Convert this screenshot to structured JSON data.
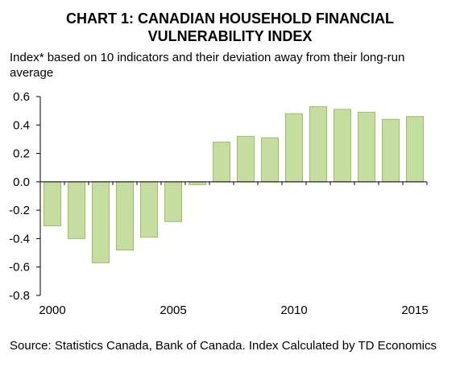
{
  "title_line1": "CHART 1: CANADIAN HOUSEHOLD FINANCIAL",
  "title_line2": "VULNERABILITY INDEX",
  "subtitle": "Index* based on 10 indicators and their deviation away from their long-run average",
  "source": "Source: Statistics Canada, Bank of Canada. Index Calculated by TD Economics",
  "colors": {
    "bar_fill": "#c5dd9e",
    "bar_stroke": "#9cbf66"
  },
  "chart_data": {
    "type": "bar",
    "title": "CHART 1: CANADIAN HOUSEHOLD FINANCIAL VULNERABILITY INDEX",
    "ylabel": "Index*",
    "categories": [
      2000,
      2001,
      2002,
      2003,
      2004,
      2005,
      2006,
      2007,
      2008,
      2009,
      2010,
      2011,
      2012,
      2013,
      2014,
      2015
    ],
    "values": [
      -0.31,
      -0.4,
      -0.57,
      -0.48,
      -0.39,
      -0.28,
      -0.02,
      0.28,
      0.32,
      0.31,
      0.48,
      0.53,
      0.51,
      0.49,
      0.44,
      0.46
    ],
    "ylim": [
      -0.8,
      0.6
    ],
    "yticks": [
      0.6,
      0.4,
      0.2,
      0.0,
      -0.2,
      -0.4,
      -0.6,
      -0.8
    ],
    "ytick_labels": [
      "0.6",
      "0.4",
      "0.2",
      "0.0",
      "-0.2",
      "-0.4",
      "-0.6",
      "-0.8"
    ],
    "xtick_labels": [
      "2000",
      "2005",
      "2010",
      "2015"
    ],
    "grid": false
  }
}
